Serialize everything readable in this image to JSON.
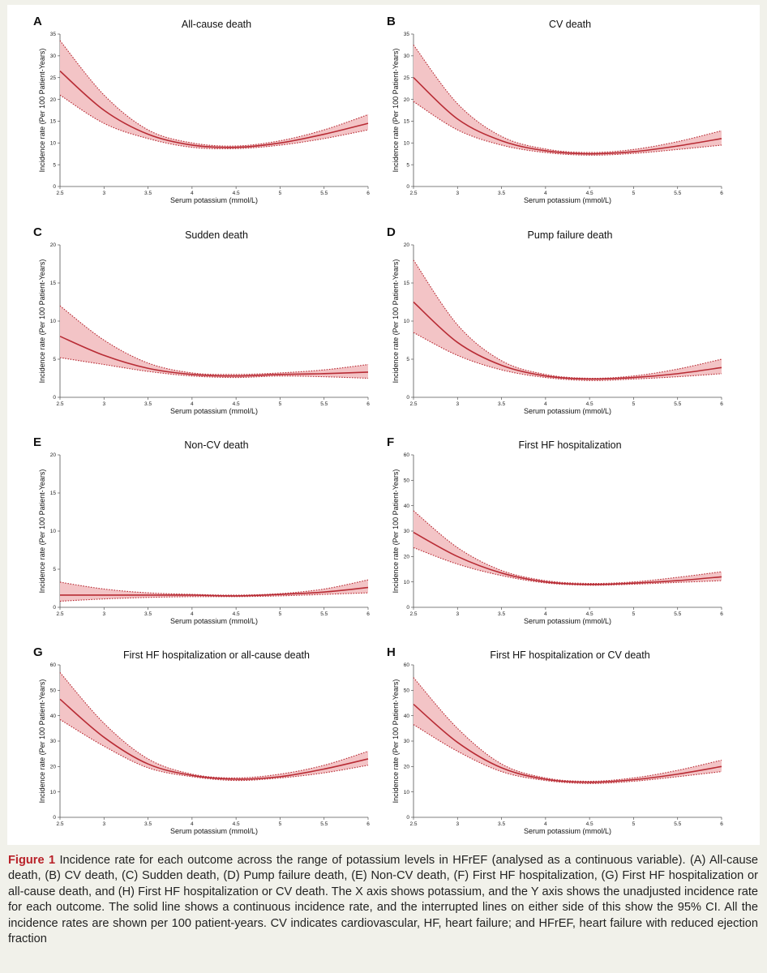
{
  "colors": {
    "curve": "#b82c35",
    "band": "#f3c4c6",
    "caption_label": "#b82128",
    "background": "#f1f1ea"
  },
  "caption": {
    "label": "Figure 1",
    "text": " Incidence rate for each outcome across the range of potassium levels in HFrEF (analysed as a continuous variable). (A) All-cause death, (B) CV death, (C) Sudden death, (D) Pump failure death, (E) Non-CV death, (F) First HF hospitalization, (G) First HF hospitalization or all-cause death, and (H) First HF hospitalization or CV death. The X axis shows potassium, and the Y axis shows the unadjusted incidence rate for each outcome. The solid line shows a continuous incidence rate, and the interrupted lines on either side of this show the 95% CI. All the incidence rates are shown per 100 patient-years. CV indicates cardiovascular, HF, heart failure; and HFrEF, heart failure with reduced ejection fraction"
  },
  "chart_data": [
    {
      "type": "line",
      "letter": "A",
      "title": "All-cause death",
      "xlabel": "Serum potassium (mmol/L)",
      "ylabel": "Incidence rate (Per 100 Patient-Years)",
      "xlim": [
        2.5,
        6
      ],
      "ylim": [
        0,
        35
      ],
      "xticks": [
        "2.5",
        "3",
        "3.5",
        "4",
        "4.5",
        "5",
        "5.5",
        "6"
      ],
      "yticks": [
        "0",
        "5",
        "10",
        "15",
        "20",
        "25",
        "30",
        "35"
      ],
      "x": [
        2.5,
        3.0,
        3.5,
        4.0,
        4.5,
        5.0,
        5.5,
        6.0
      ],
      "series": [
        {
          "values": [
            26.5,
            17.5,
            12.0,
            9.5,
            9.0,
            10.0,
            12.0,
            14.5
          ]
        },
        {
          "values": [
            33.5,
            21.0,
            13.0,
            10.0,
            9.3,
            10.5,
            13.0,
            16.5
          ]
        },
        {
          "values": [
            21.0,
            14.5,
            11.0,
            9.0,
            8.7,
            9.5,
            11.0,
            13.0
          ]
        }
      ]
    },
    {
      "type": "line",
      "letter": "B",
      "title": "CV death",
      "xlabel": "Serum potassium (mmol/L)",
      "ylabel": "Incidence rate (Per 100 Patient-Years)",
      "xlim": [
        2.5,
        6
      ],
      "ylim": [
        0,
        35
      ],
      "xticks": [
        "2.5",
        "3",
        "3.5",
        "4",
        "4.5",
        "5",
        "5.5",
        "6"
      ],
      "yticks": [
        "0",
        "5",
        "10",
        "15",
        "20",
        "25",
        "30",
        "35"
      ],
      "x": [
        2.5,
        3.0,
        3.5,
        4.0,
        4.5,
        5.0,
        5.5,
        6.0
      ],
      "series": [
        {
          "values": [
            25.0,
            15.5,
            10.5,
            8.2,
            7.5,
            8.0,
            9.3,
            11.0
          ]
        },
        {
          "values": [
            32.5,
            19.0,
            11.5,
            8.6,
            7.8,
            8.5,
            10.3,
            12.8
          ]
        },
        {
          "values": [
            19.5,
            13.0,
            9.5,
            7.8,
            7.2,
            7.6,
            8.5,
            9.5
          ]
        }
      ]
    },
    {
      "type": "line",
      "letter": "C",
      "title": "Sudden death",
      "xlabel": "Serum potassium (mmol/L)",
      "ylabel": "Incidence rate (Per 100 Patient-Years)",
      "xlim": [
        2.5,
        6
      ],
      "ylim": [
        0,
        20
      ],
      "xticks": [
        "2.5",
        "3",
        "3.5",
        "4",
        "4.5",
        "5",
        "5.5",
        "6"
      ],
      "yticks": [
        "0",
        "5",
        "10",
        "15",
        "20"
      ],
      "x": [
        2.5,
        3.0,
        3.5,
        4.0,
        4.5,
        5.0,
        5.5,
        6.0
      ],
      "series": [
        {
          "values": [
            8.0,
            5.5,
            3.8,
            3.0,
            2.8,
            3.0,
            3.1,
            3.3
          ]
        },
        {
          "values": [
            12.0,
            7.5,
            4.5,
            3.2,
            3.0,
            3.2,
            3.6,
            4.3
          ]
        },
        {
          "values": [
            5.2,
            4.3,
            3.4,
            2.8,
            2.6,
            2.8,
            2.7,
            2.5
          ]
        }
      ]
    },
    {
      "type": "line",
      "letter": "D",
      "title": "Pump failure death",
      "xlabel": "Serum potassium (mmol/L)",
      "ylabel": "Incidence rate (Per 100 Patient-Years)",
      "xlim": [
        2.5,
        6
      ],
      "ylim": [
        0,
        20
      ],
      "xticks": [
        "2.5",
        "3",
        "3.5",
        "4",
        "4.5",
        "5",
        "5.5",
        "6"
      ],
      "yticks": [
        "0",
        "5",
        "10",
        "15",
        "20"
      ],
      "x": [
        2.5,
        3.0,
        3.5,
        4.0,
        4.5,
        5.0,
        5.5,
        6.0
      ],
      "series": [
        {
          "values": [
            12.5,
            7.2,
            4.2,
            2.8,
            2.4,
            2.6,
            3.1,
            3.9
          ]
        },
        {
          "values": [
            18.0,
            9.5,
            4.8,
            3.0,
            2.5,
            2.8,
            3.7,
            5.0
          ]
        },
        {
          "values": [
            8.5,
            5.5,
            3.6,
            2.6,
            2.2,
            2.4,
            2.7,
            3.1
          ]
        }
      ]
    },
    {
      "type": "line",
      "letter": "E",
      "title": "Non-CV death",
      "xlabel": "Serum potassium (mmol/L)",
      "ylabel": "Incidence rate (Per 100 Patient-Years)",
      "xlim": [
        2.5,
        6
      ],
      "ylim": [
        0,
        20
      ],
      "xticks": [
        "2.5",
        "3",
        "3.5",
        "4",
        "4.5",
        "5",
        "5.5",
        "6"
      ],
      "yticks": [
        "0",
        "5",
        "10",
        "15",
        "20"
      ],
      "x": [
        2.5,
        3.0,
        3.5,
        4.0,
        4.5,
        5.0,
        5.5,
        6.0
      ],
      "series": [
        {
          "values": [
            1.6,
            1.6,
            1.6,
            1.6,
            1.5,
            1.7,
            2.0,
            2.6
          ]
        },
        {
          "values": [
            3.3,
            2.4,
            1.9,
            1.7,
            1.6,
            1.8,
            2.4,
            3.6
          ]
        },
        {
          "values": [
            0.8,
            1.1,
            1.3,
            1.4,
            1.4,
            1.5,
            1.7,
            1.9
          ]
        }
      ]
    },
    {
      "type": "line",
      "letter": "F",
      "title": "First HF hospitalization",
      "xlabel": "Serum potassium (mmol/L)",
      "ylabel": "Incidence rate (Per 100 Patient-Years)",
      "xlim": [
        2.5,
        6
      ],
      "ylim": [
        0,
        60
      ],
      "xticks": [
        "2.5",
        "3",
        "3.5",
        "4",
        "4.5",
        "5",
        "5.5",
        "6"
      ],
      "yticks": [
        "0",
        "10",
        "20",
        "30",
        "40",
        "50",
        "60"
      ],
      "x": [
        2.5,
        3.0,
        3.5,
        4.0,
        4.5,
        5.0,
        5.5,
        6.0
      ],
      "series": [
        {
          "values": [
            29.5,
            20.0,
            13.5,
            10.0,
            9.0,
            9.5,
            10.5,
            12.0
          ]
        },
        {
          "values": [
            38.0,
            23.5,
            14.5,
            10.5,
            9.4,
            10.0,
            11.8,
            14.0
          ]
        },
        {
          "values": [
            23.5,
            17.0,
            12.5,
            9.6,
            8.7,
            9.1,
            9.8,
            10.5
          ]
        }
      ]
    },
    {
      "type": "line",
      "letter": "G",
      "title": "First HF hospitalization or all-cause death",
      "xlabel": "Serum potassium (mmol/L)",
      "ylabel": "Incidence rate (Per 100 Patient-Years)",
      "xlim": [
        2.5,
        6
      ],
      "ylim": [
        0,
        60
      ],
      "xticks": [
        "2.5",
        "3",
        "3.5",
        "4",
        "4.5",
        "5",
        "5.5",
        "6"
      ],
      "yticks": [
        "0",
        "10",
        "20",
        "30",
        "40",
        "50",
        "60"
      ],
      "x": [
        2.5,
        3.0,
        3.5,
        4.0,
        4.5,
        5.0,
        5.5,
        6.0
      ],
      "series": [
        {
          "values": [
            46.5,
            31.5,
            21.0,
            16.5,
            15.0,
            16.0,
            19.0,
            23.0
          ]
        },
        {
          "values": [
            57.0,
            37.0,
            23.0,
            17.0,
            15.5,
            17.0,
            20.5,
            26.0
          ]
        },
        {
          "values": [
            38.5,
            28.0,
            19.5,
            16.0,
            14.5,
            15.5,
            17.5,
            20.5
          ]
        }
      ]
    },
    {
      "type": "line",
      "letter": "H",
      "title": "First HF hospitalization or CV death",
      "xlabel": "Serum potassium (mmol/L)",
      "ylabel": "Incidence rate (Per 100 Patient-Years)",
      "xlim": [
        2.5,
        6
      ],
      "ylim": [
        0,
        60
      ],
      "xticks": [
        "2.5",
        "3",
        "3.5",
        "4",
        "4.5",
        "5",
        "5.5",
        "6"
      ],
      "yticks": [
        "0",
        "10",
        "20",
        "30",
        "40",
        "50",
        "60"
      ],
      "x": [
        2.5,
        3.0,
        3.5,
        4.0,
        4.5,
        5.0,
        5.5,
        6.0
      ],
      "series": [
        {
          "values": [
            44.5,
            29.5,
            19.5,
            15.0,
            13.8,
            14.8,
            17.0,
            20.0
          ]
        },
        {
          "values": [
            55.0,
            35.0,
            21.0,
            15.5,
            14.2,
            15.5,
            18.5,
            22.5
          ]
        },
        {
          "values": [
            36.5,
            26.0,
            18.0,
            14.5,
            13.3,
            14.2,
            16.0,
            18.0
          ]
        }
      ]
    }
  ]
}
